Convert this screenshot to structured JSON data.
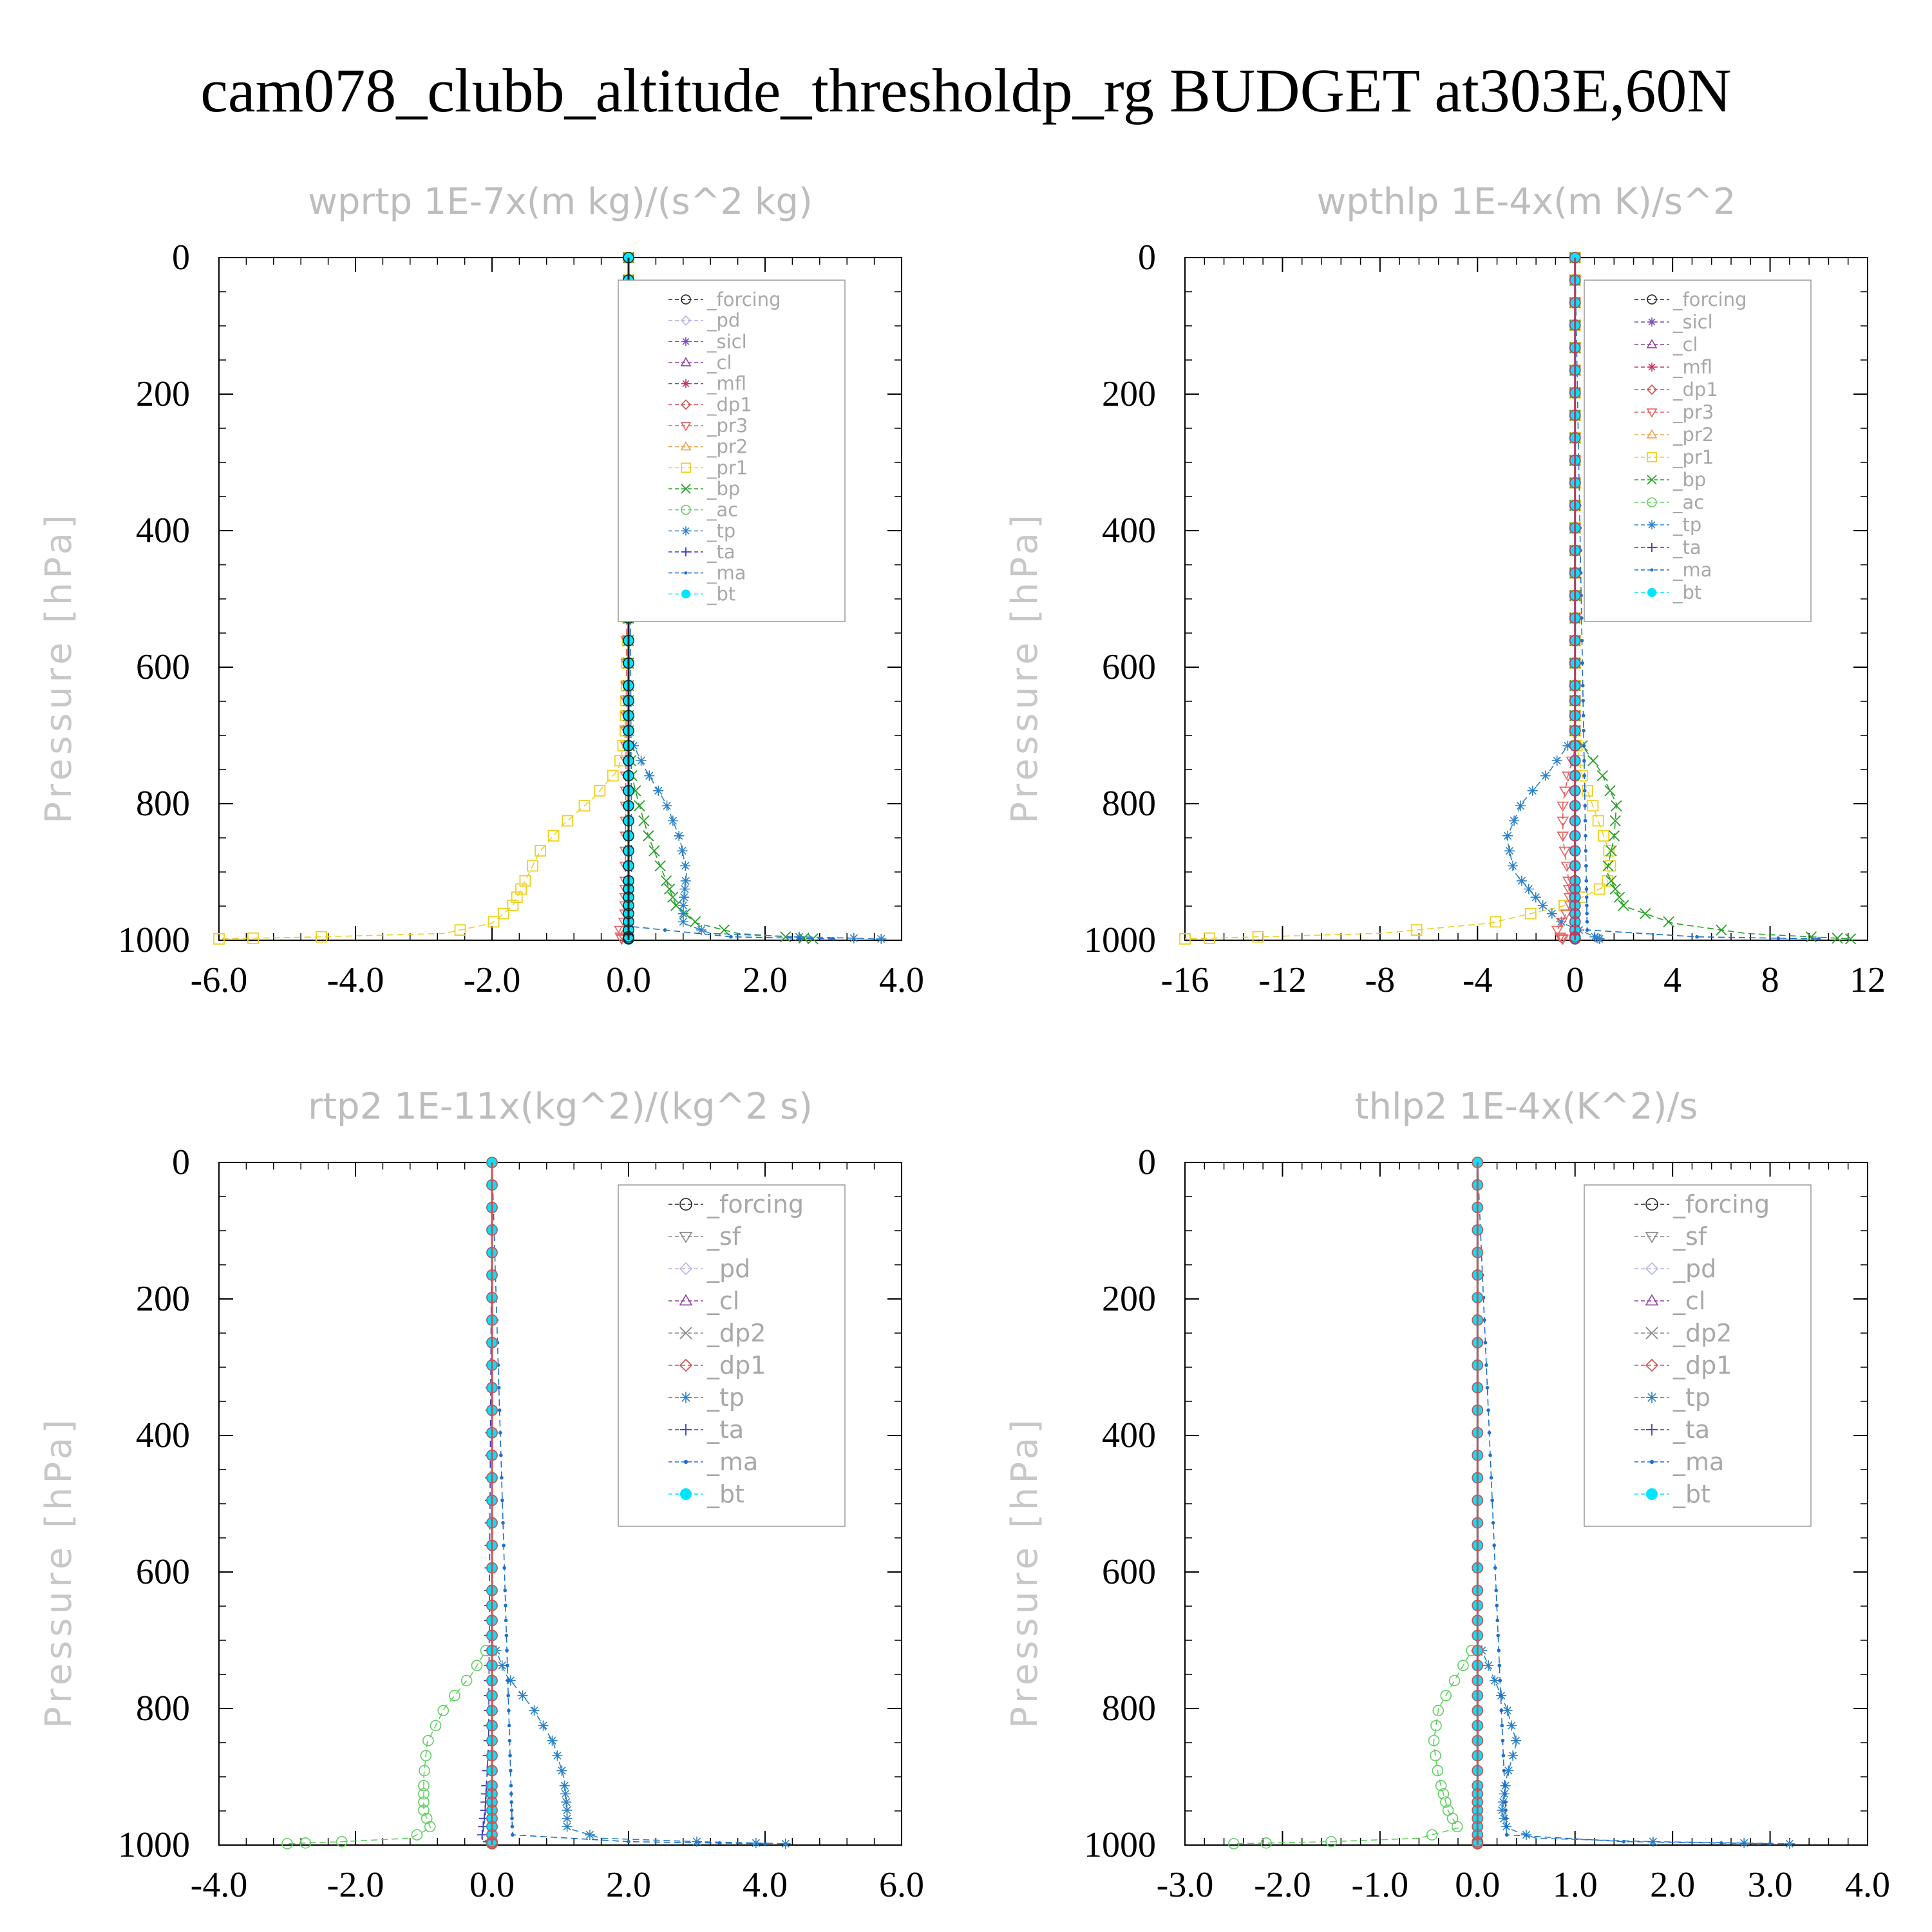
{
  "title": "cam078_clubb_altitude_thresholdp_rg  BUDGET at303E,60N",
  "colors": {
    "forcing": "#222222",
    "pd": "#b7b7e6",
    "sicl": "#7a4fb0",
    "cl": "#8e3f9f",
    "mfl": "#c0375c",
    "dp1": "#d05050",
    "pr3": "#e86060",
    "pr2": "#f2a250",
    "pr1": "#f0d020",
    "bp": "#28a028",
    "ac": "#60d060",
    "tp": "#2c82c9",
    "ta": "#3a3ac8",
    "ma": "#1f6fd0",
    "bt": "#00e5ff"
  },
  "chart_data": [
    {
      "type": "line",
      "title": "wprtp  1E-7x(m kg)/(s^2 kg)",
      "ylabel": "Pressure [hPa]",
      "xlim": [
        -6,
        4
      ],
      "ylim": [
        0,
        1000
      ],
      "y_inverted": true,
      "xticks": [
        -6,
        -4,
        -2,
        0,
        2,
        4
      ],
      "xtick_labels": [
        "-6.0",
        "-4.0",
        "-2.0",
        "0.0",
        "2.0",
        "4.0"
      ],
      "yticks": [
        0,
        200,
        400,
        600,
        800,
        1000
      ],
      "ytick_labels": [
        "0",
        "200",
        "400",
        "600",
        "800",
        "1000"
      ],
      "legend": [
        "_forcing",
        "_pd",
        "_sicl",
        "_cl",
        "_mfl",
        "_dp1",
        "_pr3",
        "_pr2",
        "_pr1",
        "_bp",
        "_ac",
        "_tp",
        "_ta",
        "_ma",
        "_bt"
      ],
      "legend_position": "top-right",
      "series": [
        {
          "name": "_pr1",
          "color": "#f0d020",
          "marker": "square",
          "p": [
            0,
            500,
            700,
            750,
            790,
            830,
            870,
            910,
            950,
            975,
            990,
            995,
            998
          ],
          "x": [
            0,
            0,
            -0.05,
            -0.15,
            -0.5,
            -0.95,
            -1.3,
            -1.5,
            -1.7,
            -2.0,
            -2.7,
            -4.5,
            -6.0
          ]
        },
        {
          "name": "_bp",
          "color": "#28a028",
          "marker": "x",
          "p": [
            0,
            700,
            760,
            800,
            850,
            900,
            950,
            975,
            990,
            995,
            998
          ],
          "x": [
            0,
            0,
            0.05,
            0.15,
            0.3,
            0.5,
            0.7,
            1.0,
            1.6,
            2.3,
            2.7
          ]
        },
        {
          "name": "_tp",
          "color": "#2c82c9",
          "marker": "star",
          "p": [
            0,
            700,
            750,
            800,
            850,
            900,
            950,
            975,
            990,
            995,
            998
          ],
          "x": [
            0,
            0,
            0.25,
            0.55,
            0.75,
            0.85,
            0.8,
            0.8,
            1.2,
            2.5,
            3.7
          ]
        },
        {
          "name": "_ma",
          "color": "#1f6fd0",
          "marker": "dot",
          "p": [
            0,
            980,
            995,
            998
          ],
          "x": [
            0,
            0.05,
            1.5,
            3.0
          ]
        },
        {
          "name": "_pr3",
          "color": "#e86060",
          "marker": "tri-down",
          "p": [
            0,
            970,
            990,
            998
          ],
          "x": [
            0,
            -0.05,
            -0.15,
            -0.1
          ]
        },
        {
          "name": "_bt",
          "color": "#00e5ff",
          "marker": "filled",
          "p": [
            0,
            1000
          ],
          "x": [
            0,
            0
          ]
        },
        {
          "name": "_forcing",
          "color": "#222222",
          "marker": "circle",
          "p": [
            0,
            1000
          ],
          "x": [
            0,
            0
          ]
        }
      ]
    },
    {
      "type": "line",
      "title": "wpthlp  1E-4x(m K)/s^2",
      "ylabel": "Pressure [hPa]",
      "xlim": [
        -16,
        12
      ],
      "ylim": [
        0,
        1000
      ],
      "y_inverted": true,
      "xticks": [
        -16,
        -12,
        -8,
        -4,
        0,
        4,
        8,
        12
      ],
      "xtick_labels": [
        "-16",
        "-12",
        "-8",
        "-4",
        "0",
        "4",
        "8",
        "12"
      ],
      "yticks": [
        0,
        200,
        400,
        600,
        800,
        1000
      ],
      "ytick_labels": [
        "0",
        "200",
        "400",
        "600",
        "800",
        "1000"
      ],
      "legend": [
        "_forcing",
        "_sicl",
        "_cl",
        "_mfl",
        "_dp1",
        "_pr3",
        "_pr2",
        "_pr1",
        "_bp",
        "_ac",
        "_tp",
        "_ta",
        "_ma",
        "_bt"
      ],
      "legend_position": "top-right",
      "series": [
        {
          "name": "_pr1",
          "color": "#f0d020",
          "marker": "square",
          "p": [
            0,
            700,
            760,
            800,
            850,
            880,
            920,
            950,
            975,
            990,
            998
          ],
          "x": [
            0,
            0,
            0.3,
            0.7,
            1.2,
            1.5,
            1.3,
            -0.5,
            -3.5,
            -8.0,
            -16.0
          ]
        },
        {
          "name": "_bp",
          "color": "#28a028",
          "marker": "x",
          "p": [
            0,
            700,
            750,
            800,
            850,
            900,
            950,
            975,
            990,
            998
          ],
          "x": [
            0,
            0,
            1.0,
            1.7,
            1.6,
            1.3,
            2.0,
            4.0,
            7.0,
            11.3
          ]
        },
        {
          "name": "_tp",
          "color": "#2c82c9",
          "marker": "star",
          "p": [
            0,
            700,
            750,
            800,
            850,
            900,
            950,
            975,
            990,
            998
          ],
          "x": [
            0,
            0,
            -1.0,
            -2.2,
            -2.8,
            -2.5,
            -1.3,
            -0.5,
            0.5,
            1.0
          ]
        },
        {
          "name": "_pr3",
          "color": "#e86060",
          "marker": "tri-down",
          "p": [
            0,
            720,
            760,
            800,
            850,
            900,
            950,
            990,
            998
          ],
          "x": [
            0,
            0,
            -0.3,
            -0.5,
            -0.5,
            -0.3,
            -0.2,
            -0.8,
            -0.5
          ]
        },
        {
          "name": "_ma",
          "color": "#1f6fd0",
          "marker": "dot",
          "p": [
            0,
            985,
            995,
            998
          ],
          "x": [
            0,
            0.5,
            5.0,
            10.0
          ]
        },
        {
          "name": "_bt",
          "color": "#00e5ff",
          "marker": "filled",
          "p": [
            0,
            1000
          ],
          "x": [
            0,
            0
          ]
        },
        {
          "name": "_mfl",
          "color": "#c0375c",
          "marker": "circle",
          "p": [
            0,
            1000
          ],
          "x": [
            0,
            0
          ]
        }
      ]
    },
    {
      "type": "line",
      "title": "rtp2  1E-11x(kg^2)/(kg^2 s)",
      "ylabel": "Pressure [hPa]",
      "xlim": [
        -4,
        6
      ],
      "ylim": [
        0,
        1000
      ],
      "y_inverted": true,
      "xticks": [
        -4,
        -2,
        0,
        2,
        4,
        6
      ],
      "xtick_labels": [
        "-4.0",
        "-2.0",
        "0.0",
        "2.0",
        "4.0",
        "6.0"
      ],
      "yticks": [
        0,
        200,
        400,
        600,
        800,
        1000
      ],
      "ytick_labels": [
        "0",
        "200",
        "400",
        "600",
        "800",
        "1000"
      ],
      "legend": [
        "_forcing",
        "_sf",
        "_pd",
        "_cl",
        "_dp2",
        "_dp1",
        "_tp",
        "_ta",
        "_ma",
        "_bt"
      ],
      "legend_position": "top-right",
      "series": [
        {
          "name": "_dp1",
          "color": "#60d060",
          "marker": "circle",
          "p": [
            0,
            700,
            750,
            800,
            850,
            900,
            950,
            975,
            990,
            995,
            998
          ],
          "x": [
            0,
            0,
            -0.3,
            -0.7,
            -0.95,
            -1.0,
            -1.0,
            -0.9,
            -1.2,
            -2.2,
            -3.0
          ]
        },
        {
          "name": "_tp",
          "color": "#2c82c9",
          "marker": "star",
          "p": [
            0,
            700,
            750,
            800,
            850,
            900,
            950,
            975,
            990,
            995,
            998
          ],
          "x": [
            0,
            0,
            0.2,
            0.6,
            0.9,
            1.05,
            1.1,
            1.1,
            1.6,
            3.0,
            4.3
          ]
        },
        {
          "name": "_ta",
          "color": "#3a3ac8",
          "marker": "plus",
          "p": [
            0,
            850,
            950,
            990,
            998
          ],
          "x": [
            0,
            -0.05,
            -0.1,
            -0.15,
            0.0
          ]
        },
        {
          "name": "_ma",
          "color": "#1f6fd0",
          "marker": "dot",
          "p": [
            0,
            985,
            995,
            998
          ],
          "x": [
            0,
            0.3,
            2.0,
            4.0
          ]
        },
        {
          "name": "_bt",
          "color": "#00e5ff",
          "marker": "filled",
          "p": [
            0,
            1000
          ],
          "x": [
            0,
            0
          ]
        },
        {
          "name": "_forcing",
          "color": "#d05050",
          "marker": "circle",
          "p": [
            0,
            1000
          ],
          "x": [
            0,
            0
          ]
        }
      ]
    },
    {
      "type": "line",
      "title": "thlp2  1E-4x(K^2)/s",
      "ylabel": "Pressure [hPa]",
      "xlim": [
        -3,
        4
      ],
      "ylim": [
        0,
        1000
      ],
      "y_inverted": true,
      "xticks": [
        -3,
        -2,
        -1,
        0,
        1,
        2,
        3,
        4
      ],
      "xtick_labels": [
        "-3.0",
        "-2.0",
        "-1.0",
        "0.0",
        "1.0",
        "2.0",
        "3.0",
        "4.0"
      ],
      "yticks": [
        0,
        200,
        400,
        600,
        800,
        1000
      ],
      "ytick_labels": [
        "0",
        "200",
        "400",
        "600",
        "800",
        "1000"
      ],
      "legend": [
        "_forcing",
        "_sf",
        "_pd",
        "_cl",
        "_dp2",
        "_dp1",
        "_tp",
        "_ta",
        "_ma",
        "_bt"
      ],
      "legend_position": "top-right",
      "series": [
        {
          "name": "_dp1",
          "color": "#60d060",
          "marker": "circle",
          "p": [
            0,
            700,
            750,
            800,
            850,
            900,
            950,
            975,
            990,
            995,
            998
          ],
          "x": [
            0,
            0,
            -0.2,
            -0.4,
            -0.45,
            -0.4,
            -0.3,
            -0.2,
            -0.6,
            -1.5,
            -2.5
          ]
        },
        {
          "name": "_tp",
          "color": "#2c82c9",
          "marker": "star",
          "p": [
            0,
            700,
            750,
            800,
            850,
            900,
            950,
            975,
            990,
            995,
            998
          ],
          "x": [
            0,
            0,
            0.15,
            0.3,
            0.4,
            0.3,
            0.25,
            0.3,
            0.6,
            1.8,
            3.2
          ]
        },
        {
          "name": "_ma",
          "color": "#1f6fd0",
          "marker": "dot",
          "p": [
            0,
            985,
            995,
            998
          ],
          "x": [
            0,
            0.3,
            1.5,
            3.0
          ]
        },
        {
          "name": "_bt",
          "color": "#00e5ff",
          "marker": "filled",
          "p": [
            0,
            1000
          ],
          "x": [
            0,
            0
          ]
        },
        {
          "name": "_forcing",
          "color": "#d05050",
          "marker": "circle",
          "p": [
            0,
            1000
          ],
          "x": [
            0,
            0
          ]
        }
      ]
    }
  ]
}
